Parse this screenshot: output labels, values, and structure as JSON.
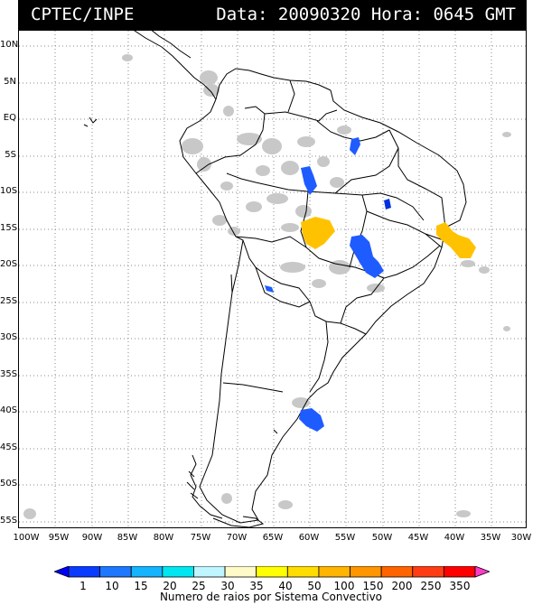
{
  "header": {
    "org": "CPTEC/INPE",
    "timestamp": "Data: 20090320 Hora: 0645 GMT"
  },
  "lat_labels": [
    "10N",
    "5N",
    "EQ",
    "5S",
    "10S",
    "15S",
    "20S",
    "25S",
    "30S",
    "35S",
    "40S",
    "45S",
    "50S",
    "55S"
  ],
  "lon_labels": [
    "100W",
    "95W",
    "90W",
    "85W",
    "80W",
    "75W",
    "70W",
    "65W",
    "60W",
    "55W",
    "50W",
    "45W",
    "40W",
    "35W",
    "30W"
  ],
  "legend": {
    "title": "Numero de raios por Sistema Convectivo",
    "labels": [
      "1",
      "10",
      "15",
      "20",
      "25",
      "30",
      "35",
      "40",
      "50",
      "100",
      "150",
      "200",
      "250",
      "350"
    ],
    "colors": [
      "#0000ff",
      "#0a3cff",
      "#1e78ff",
      "#14b4ff",
      "#00e6f0",
      "#bff5ff",
      "#fffac8",
      "#ffff00",
      "#ffdc00",
      "#ffb400",
      "#ff9600",
      "#ff6400",
      "#ff3c14",
      "#ff0000",
      "#ff3cc8"
    ]
  },
  "map_colors": {
    "cloud": "#c8c8c8",
    "blue_system": "#1e5cff",
    "dark_blue_system": "#0030e0",
    "orange_system": "#ffc200",
    "land_border": "#000000",
    "grid": "#808080"
  }
}
